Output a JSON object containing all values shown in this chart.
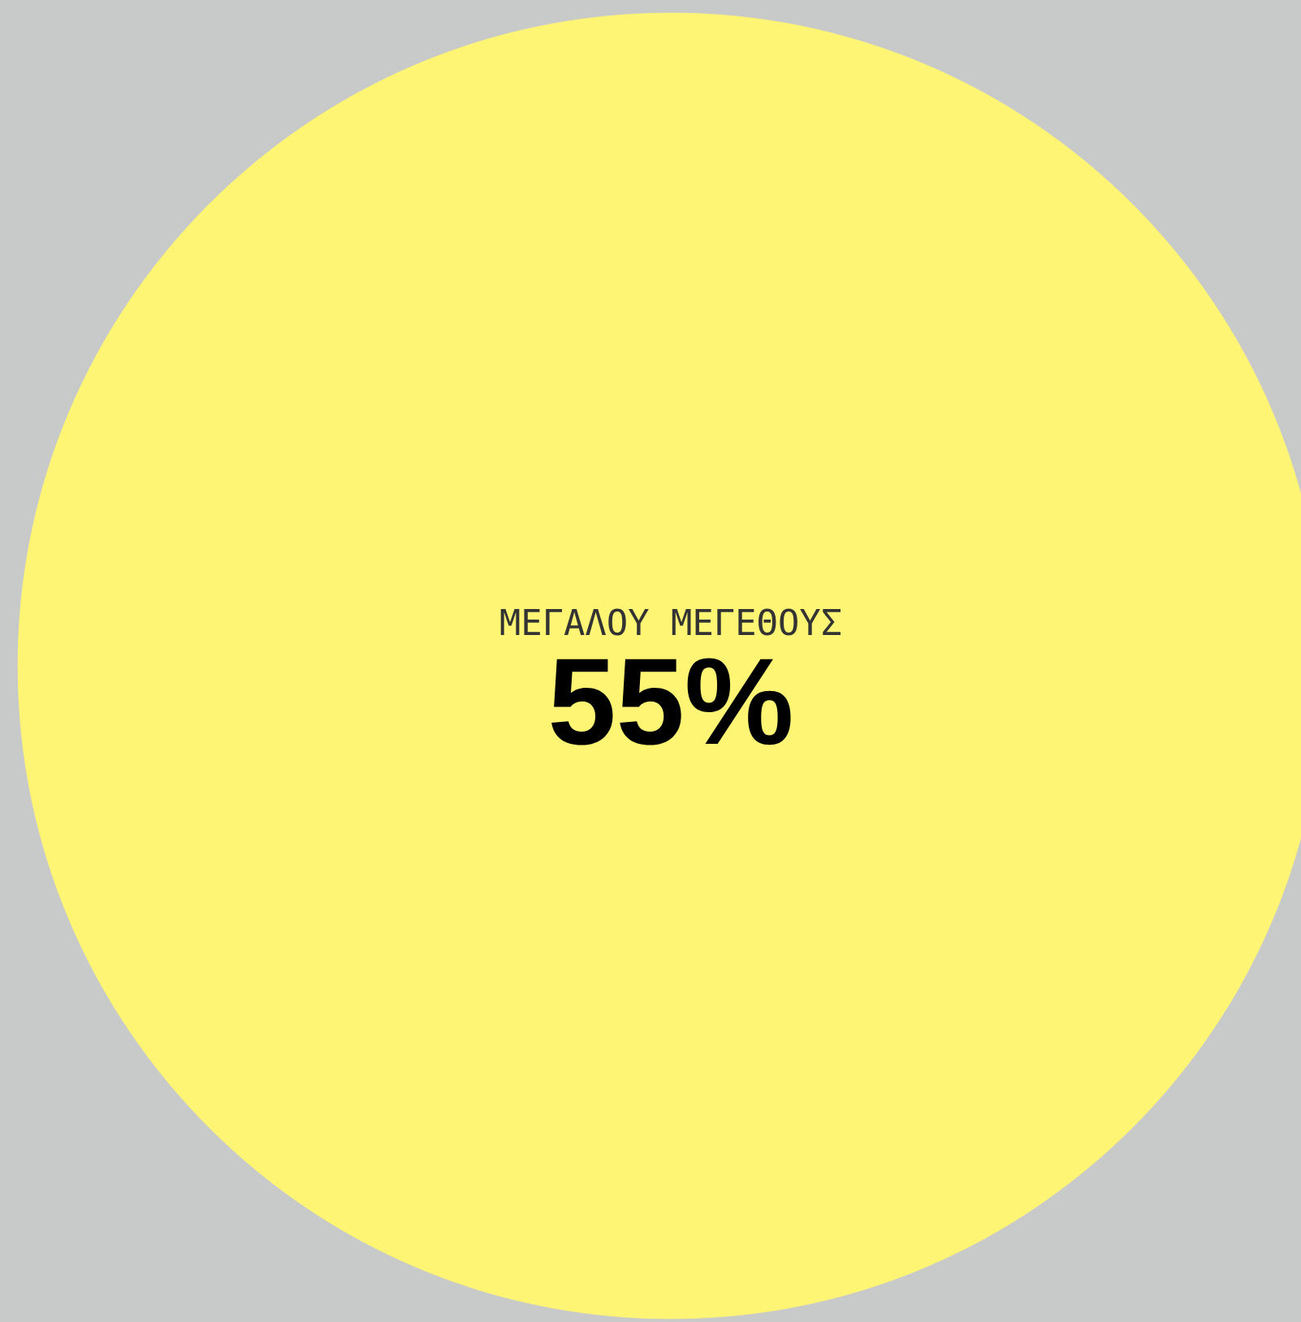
{
  "chart_data": {
    "type": "other",
    "categories": [
      "ΜΕΓΑΛΟΥ ΜΕΓΕΘΟΥΣ"
    ],
    "values": [
      55
    ],
    "value_labels": [
      "55%"
    ],
    "colors": [
      "#fff575"
    ]
  }
}
